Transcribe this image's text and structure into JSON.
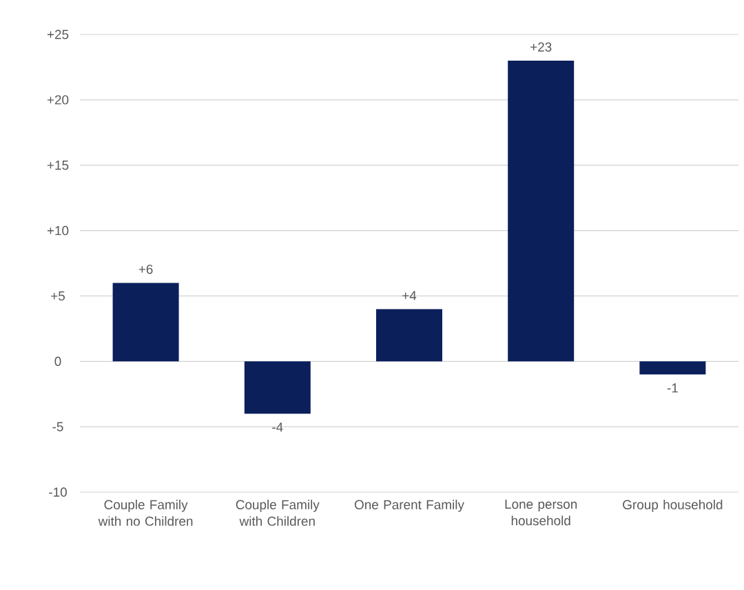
{
  "chart_data": {
    "type": "bar",
    "categories": [
      "Couple Family with no Children",
      "Couple Family with Children",
      "One Parent Family",
      "Lone person household",
      "Group household"
    ],
    "values": [
      6,
      -4,
      4,
      23,
      -1
    ],
    "value_labels": [
      "+6",
      "-4",
      "+4",
      "+23",
      "-1"
    ],
    "color": "#0b1f5b",
    "ylim": [
      -10,
      25
    ],
    "yticks": [
      -10,
      -5,
      0,
      {
        "value": 5,
        "label": "+5"
      },
      {
        "value": 10,
        "label": "+10"
      },
      {
        "value": 15,
        "label": "+15"
      },
      {
        "value": 20,
        "label": "+20"
      },
      {
        "value": 25,
        "label": "+25"
      }
    ],
    "grid": "y"
  }
}
